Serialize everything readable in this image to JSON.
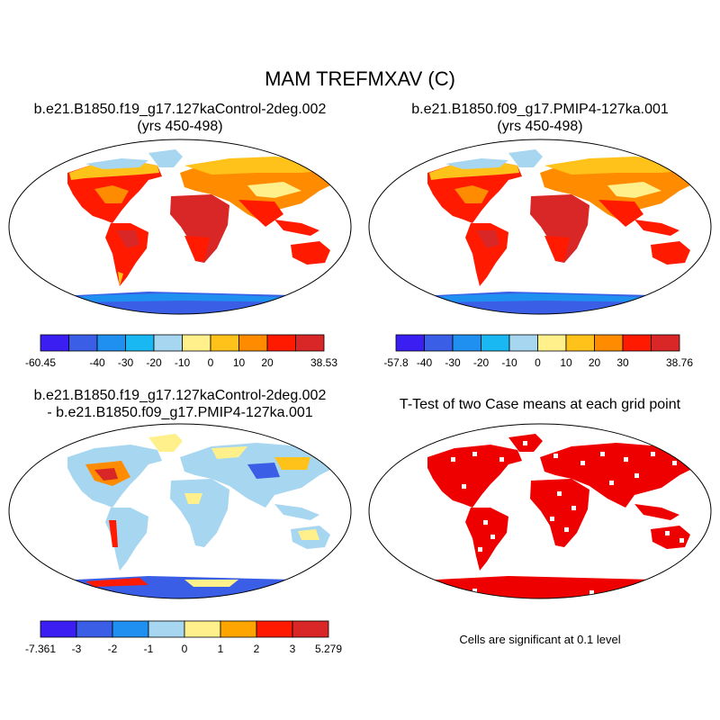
{
  "figure": {
    "title": "MAM TREFMXAV (C)"
  },
  "panels": {
    "top_left": {
      "title_line1": "b.e21.B1850.f19_g17.127kaControl-2deg.002",
      "title_line2": "(yrs 450-498)"
    },
    "top_right": {
      "title_line1": "b.e21.B1850.f09_g17.PMIP4-127ka.001",
      "title_line2": "(yrs 450-498)"
    },
    "bottom_left": {
      "title_line1": "b.e21.B1850.f19_g17.127kaControl-2deg.002",
      "title_line2": "- b.e21.B1850.f09_g17.PMIP4-127ka.001"
    },
    "bottom_right": {
      "title_line1": "T-Test of two Case means at each grid point",
      "note": "Cells are significant at 0.1 level"
    }
  },
  "colorbars": {
    "cb1": {
      "colors": [
        "#3b1ff2",
        "#3b5ee6",
        "#1f8ff0",
        "#19b8f2",
        "#a6d6f0",
        "#fff08c",
        "#ffc21a",
        "#ff8c00",
        "#ff1a00",
        "#d92626"
      ],
      "labels": [
        "-60.45",
        "-40",
        "-30",
        "-20",
        "-10",
        "0",
        "10",
        "20",
        "38.53"
      ]
    },
    "cb2": {
      "colors": [
        "#3b1ff2",
        "#3b5ee6",
        "#1f8ff0",
        "#19b8f2",
        "#a6d6f0",
        "#fff08c",
        "#ffc21a",
        "#ff8c00",
        "#ff1a00",
        "#d92626"
      ],
      "labels": [
        "-57.8",
        "-40",
        "-30",
        "-20",
        "-10",
        "0",
        "10",
        "20",
        "30",
        "38.76"
      ]
    },
    "cb3": {
      "colors": [
        "#3b1ff2",
        "#3b5ee6",
        "#1f8ff0",
        "#a6d6f0",
        "#fff08c",
        "#ffa500",
        "#ff1a00",
        "#d92626"
      ],
      "labels": [
        "-7.361",
        "-3",
        "-2",
        "-1",
        "0",
        "1",
        "2",
        "3",
        "5.279"
      ]
    }
  },
  "legend_colors": {
    "land_warm": "#ff1a00",
    "land_hot": "#d92626",
    "land_mid": "#ff8c00",
    "land_cool": "#ffc21a",
    "land_mild": "#fff08c",
    "antarctic": "#3b5ee6",
    "antarctic_edge": "#1f8ff0",
    "significant": "#ee0000"
  }
}
